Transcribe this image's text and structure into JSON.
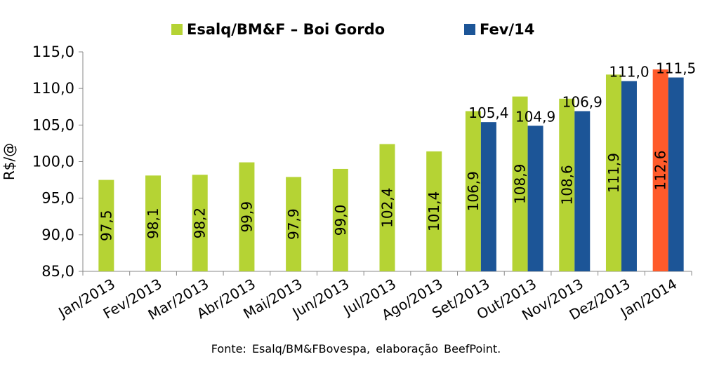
{
  "chart_data": {
    "type": "bar",
    "categories": [
      "Jan/2013",
      "Fev/2013",
      "Mar/2013",
      "Abr/2013",
      "Mai/2013",
      "Jun/2013",
      "Jul/2013",
      "Ago/2013",
      "Set/2013",
      "Out/2013",
      "Nov/2013",
      "Dez/2013",
      "Jan/2014"
    ],
    "series": [
      {
        "name": "Esalq/BM&F – Boi Gordo",
        "color": "#b5d334",
        "highlight_color": "#ff5a2a",
        "highlight_index": 12,
        "values": [
          97.5,
          98.1,
          98.2,
          99.9,
          97.9,
          99.0,
          102.4,
          101.4,
          106.9,
          108.9,
          108.6,
          111.9,
          112.6
        ],
        "labels": [
          "97,5",
          "98,1",
          "98,2",
          "99,9",
          "97,9",
          "99,0",
          "102,4",
          "101,4",
          "106,9",
          "108,9",
          "108,6",
          "111,9",
          "112,6"
        ]
      },
      {
        "name": "Fev/14",
        "color": "#1c5597",
        "values": [
          null,
          null,
          null,
          null,
          null,
          null,
          null,
          null,
          105.4,
          104.9,
          106.9,
          111.0,
          111.5
        ],
        "labels": [
          "",
          "",
          "",
          "",
          "",
          "",
          "",
          "",
          "105,4",
          "104,9",
          "106,9",
          "111,0",
          "111,5"
        ]
      }
    ],
    "ylabel": "R$/@",
    "xlabel": "",
    "ylim": [
      85,
      115
    ],
    "yticks": [
      85,
      90,
      95,
      100,
      105,
      110,
      115
    ],
    "ytick_labels": [
      "85,0",
      "90,0",
      "95,0",
      "100,0",
      "105,0",
      "110,0",
      "115,0"
    ],
    "grid": false,
    "legend_position": "top"
  },
  "source_note": "Fonte: Esalq/BM&FBovespa, elaboração BeefPoint."
}
